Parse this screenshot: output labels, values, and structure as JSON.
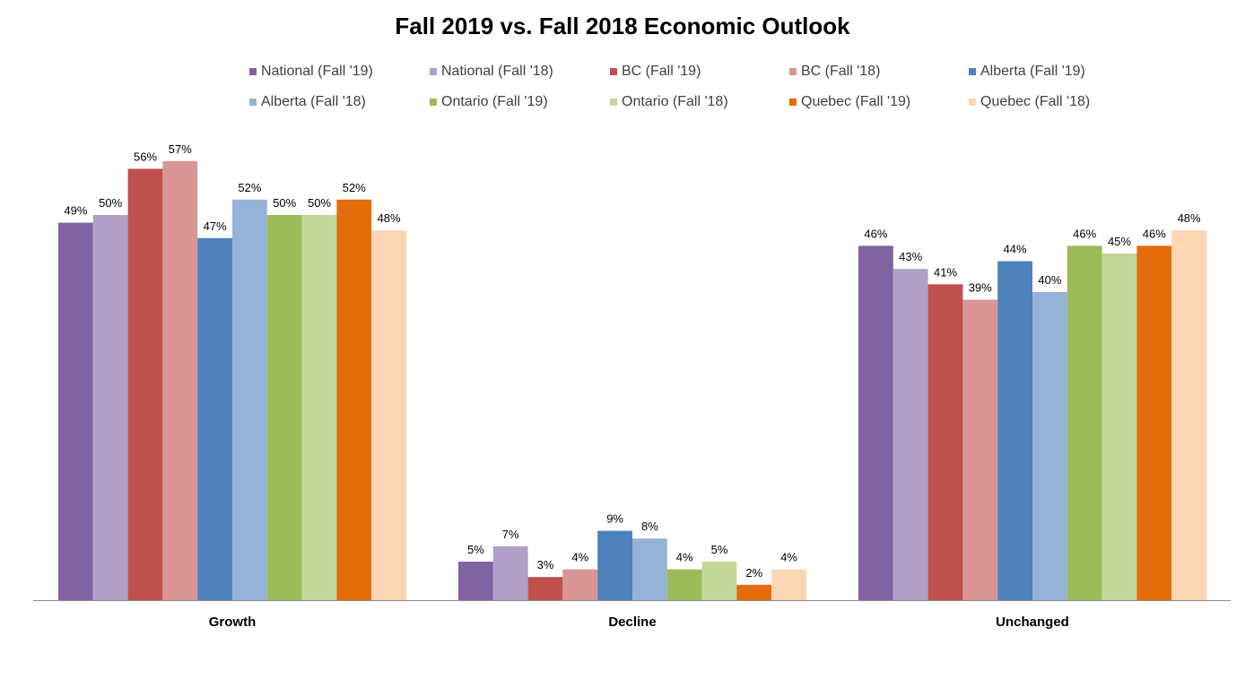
{
  "chart_data": {
    "type": "bar",
    "title": "Fall 2019 vs. Fall 2018 Economic Outlook",
    "categories": [
      "Growth",
      "Decline",
      "Unchanged"
    ],
    "value_suffix": "%",
    "ylim": [
      0,
      60
    ],
    "grid": false,
    "legend_position": "top",
    "series": [
      {
        "name": "National (Fall '19)",
        "color": "#8064A2",
        "values": [
          49,
          5,
          46
        ]
      },
      {
        "name": "National (Fall '18)",
        "color": "#B1A0C7",
        "values": [
          50,
          7,
          43
        ]
      },
      {
        "name": "BC (Fall '19)",
        "color": "#C0504D",
        "values": [
          56,
          3,
          41
        ]
      },
      {
        "name": "BC (Fall '18)",
        "color": "#DA9694",
        "values": [
          57,
          4,
          39
        ]
      },
      {
        "name": "Alberta (Fall '19)",
        "color": "#4F81BD",
        "values": [
          47,
          9,
          44
        ]
      },
      {
        "name": "Alberta (Fall '18)",
        "color": "#95B3D7",
        "values": [
          52,
          8,
          40
        ]
      },
      {
        "name": "Ontario (Fall '19)",
        "color": "#9BBB59",
        "values": [
          50,
          4,
          46
        ]
      },
      {
        "name": "Ontario (Fall '18)",
        "color": "#C4D79B",
        "values": [
          50,
          5,
          45
        ]
      },
      {
        "name": "Quebec (Fall '19)",
        "color": "#E46C0A",
        "values": [
          52,
          2,
          46
        ]
      },
      {
        "name": "Quebec (Fall '18)",
        "color": "#FCD5B4",
        "values": [
          48,
          4,
          48
        ]
      }
    ]
  }
}
